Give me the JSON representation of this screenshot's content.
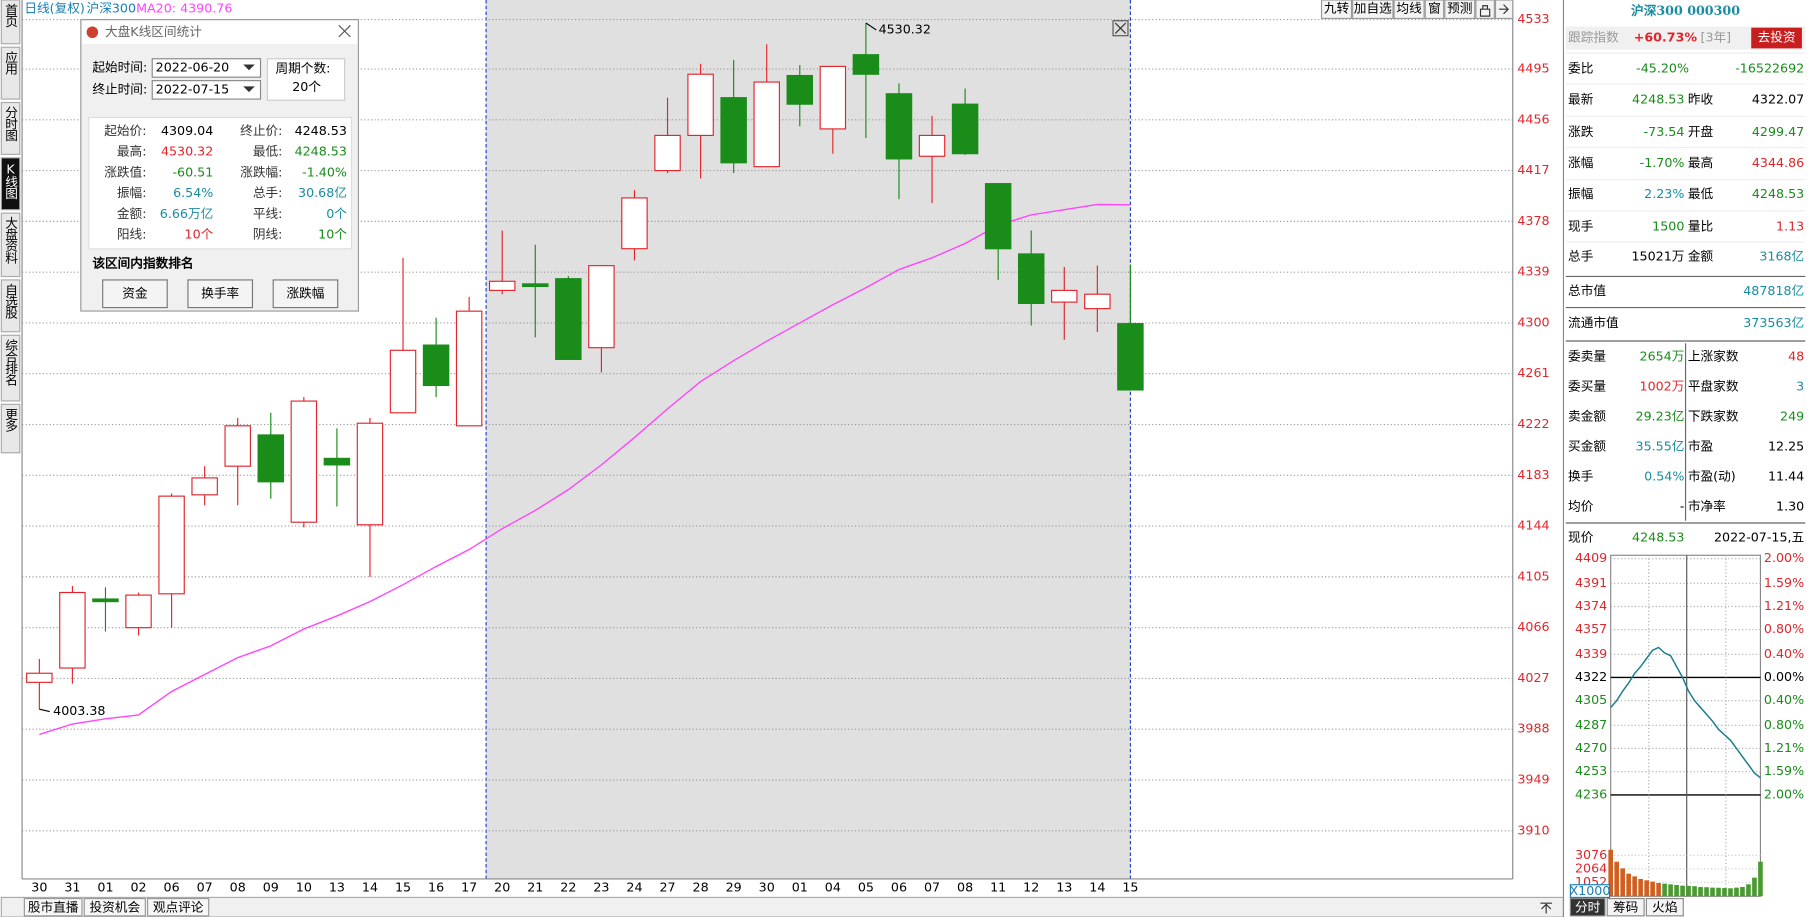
{
  "header": {
    "period": "日线(复权)",
    "name": "沪深300",
    "ma_legend": "MA20: 4390.76"
  },
  "left_tabs": [
    "首页",
    "应用",
    "分时图",
    "K线图",
    "大盘资料",
    "自选股",
    "综合排名",
    "更多"
  ],
  "toolbar": [
    "九转",
    "加自选",
    "均线",
    "窗",
    "预测"
  ],
  "bottom_tabs": [
    "股市直播",
    "投资机会",
    "观点评论"
  ],
  "chart_data": {
    "type": "candlestick",
    "categories": [
      "30",
      "31",
      "01",
      "02",
      "06",
      "07",
      "08",
      "09",
      "10",
      "13",
      "14",
      "15",
      "16",
      "17",
      "20",
      "21",
      "22",
      "23",
      "24",
      "27",
      "28",
      "29",
      "30",
      "01",
      "04",
      "05",
      "06",
      "07",
      "08",
      "11",
      "12",
      "13",
      "14",
      "15"
    ],
    "open": [
      4024,
      4035,
      4088,
      4066,
      4092,
      4168,
      4190,
      4214,
      4147,
      4196,
      4145,
      4231,
      4283,
      4221,
      4325,
      4330,
      4334,
      4281,
      4357,
      4417,
      4444,
      4473,
      4420,
      4490,
      4449,
      4506,
      4476,
      4428,
      4468,
      4407,
      4353,
      4316,
      4311,
      4299.47
    ],
    "high": [
      4042,
      4098,
      4097,
      4093,
      4169,
      4190,
      4227,
      4231,
      4243,
      4219,
      4227,
      4350,
      4304,
      4320,
      4371,
      4360,
      4336,
      4344,
      4402,
      4473,
      4499,
      4502,
      4514,
      4498,
      4497,
      4530.32,
      4484,
      4459,
      4480,
      4407,
      4371,
      4343,
      4344,
      4344.86
    ],
    "low": [
      4003.38,
      4023,
      4063,
      4060,
      4066,
      4160,
      4160,
      4165,
      4143,
      4159,
      4105,
      4231,
      4243,
      4221,
      4322,
      4289,
      4272,
      4262,
      4348,
      4415,
      4411,
      4415,
      4420,
      4451,
      4430,
      4442,
      4395,
      4392,
      4429,
      4333,
      4298,
      4287,
      4293,
      4248.53
    ],
    "close": [
      4031,
      4093,
      4086,
      4091,
      4167,
      4181,
      4221,
      4178,
      4240,
      4191,
      4223,
      4279,
      4252,
      4309.04,
      4332,
      4328,
      4272,
      4344,
      4396,
      4444,
      4491,
      4423,
      4485,
      4468,
      4497,
      4491,
      4426,
      4444,
      4430,
      4357,
      4315,
      4325,
      4322.07,
      4248.53
    ],
    "up_color": "#e0262c",
    "down_color": "#1a8c1a",
    "ma": {
      "color": "#ff44ff",
      "values": [
        3984,
        3992,
        3996,
        3999,
        4017,
        4030,
        4043,
        4052,
        4065,
        4075,
        4086,
        4099,
        4113,
        4126,
        4142,
        4156,
        4172,
        4191,
        4212,
        4234,
        4255,
        4271,
        4286,
        4300,
        4314,
        4327,
        4341,
        4350,
        4361,
        4375,
        4383,
        4387,
        4391,
        4390.76
      ]
    },
    "ylim": [
      3873,
      4548
    ],
    "yticks": [
      4533,
      4495,
      4456,
      4417,
      4378,
      4339,
      4300,
      4261,
      4222,
      4183,
      4144,
      4105,
      4066,
      4027,
      3988,
      3949,
      3910
    ],
    "grid": true
  },
  "popup": {
    "title": "大盘K线区间统计",
    "start_label": "起始时间:",
    "start": "2022-06-20",
    "end_label": "终止时间:",
    "end": "2022-07-15",
    "count_label": "周期个数:",
    "count": "20个",
    "stats": [
      [
        "起始价:",
        "4309.04",
        "终止价:",
        "4248.53"
      ],
      [
        "最高:",
        "4530.32",
        "最低:",
        "4248.53"
      ],
      [
        "涨跌值:",
        "-60.51",
        "涨跌幅:",
        "-1.40%"
      ],
      [
        "振幅:",
        "6.54%",
        "总手:",
        "30.68亿"
      ],
      [
        "金额:",
        "6.66万亿",
        "平线:",
        "0个"
      ],
      [
        "阳线:",
        "10个",
        "阴线:",
        "10个"
      ]
    ],
    "rank_title": "该区间内指数排名",
    "buttons": [
      "资金",
      "换手率",
      "涨跌幅"
    ]
  },
  "quote": {
    "title": "沪深300 000300",
    "track": [
      "跟踪指数",
      "+60.73%",
      "[3年]",
      "去投资"
    ],
    "rows": [
      [
        "委比",
        "-45.20%",
        "-16522692"
      ],
      [
        "最新",
        "4248.53",
        "昨收",
        "4322.07"
      ],
      [
        "涨跌",
        "-73.54",
        "开盘",
        "4299.47"
      ],
      [
        "涨幅",
        "-1.70%",
        "最高",
        "4344.86"
      ],
      [
        "振幅",
        "2.23%",
        "最低",
        "4248.53"
      ],
      [
        "现手",
        "1500",
        "量比",
        "1.13"
      ],
      [
        "总手",
        "15021万",
        "金额",
        "3168亿"
      ],
      [
        "总市值",
        "487818亿"
      ],
      [
        "流通市值",
        "373563亿"
      ],
      [
        "委卖量",
        "2654万",
        "上涨家数",
        "48"
      ],
      [
        "委买量",
        "1002万",
        "平盘家数",
        "3"
      ],
      [
        "卖金额",
        "29.23亿",
        "下跌家数",
        "249"
      ],
      [
        "买金额",
        "35.55亿",
        "市盈",
        "12.25"
      ],
      [
        "换手",
        "0.54%",
        "市盈(动)",
        "11.44"
      ],
      [
        "均价",
        "-",
        "市净率",
        "1.30"
      ],
      [
        "现价",
        "4248.53",
        "2022-07-15,五"
      ]
    ]
  },
  "minichart": {
    "type": "line",
    "ylim": [
      4236,
      4409
    ],
    "yticks": [
      4409,
      4391,
      4374,
      4357,
      4339,
      4322,
      4305,
      4287,
      4270,
      4253,
      4236
    ],
    "pct_labels": [
      "2.00%",
      "1.59%",
      "1.21%",
      "0.80%",
      "0.40%",
      "0.00%",
      "0.40%",
      "0.80%",
      "1.21%",
      "1.59%",
      "2.00%"
    ],
    "line": {
      "color": "#1a7f8c",
      "values": [
        4300,
        4305,
        4312,
        4318,
        4325,
        4330,
        4336,
        4342,
        4344,
        4340,
        4338,
        4330,
        4322,
        4312,
        4305,
        4300,
        4295,
        4290,
        4284,
        4280,
        4276,
        4270,
        4264,
        4258,
        4252,
        4248.53
      ]
    },
    "volume": {
      "values": [
        3500,
        2600,
        2100,
        1700,
        1500,
        1300,
        1200,
        1100,
        1000,
        950,
        900,
        850,
        800,
        780,
        760,
        700,
        680,
        650,
        640,
        620,
        600,
        650,
        700,
        900,
        1400,
        2600
      ],
      "ylim": [
        0,
        3900
      ],
      "yticks": [
        3076,
        2064,
        1052
      ],
      "unit": "X1000"
    },
    "tabs": [
      "分时",
      "筹码",
      "火焰"
    ]
  }
}
